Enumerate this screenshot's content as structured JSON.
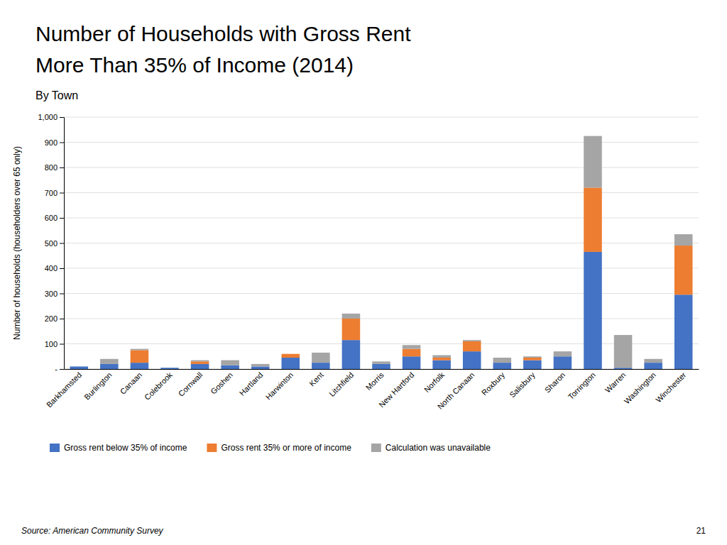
{
  "chart_data": {
    "type": "bar",
    "stacked": true,
    "title": [
      "Number of Households with Gross Rent",
      "More Than 35% of Income (2014)"
    ],
    "subtitle": "By Town",
    "ylabel": "Number of households (householders over 65 only)",
    "annotations": [
      "Source: American Community Survey",
      "21"
    ],
    "categories": [
      "Barkhamsted",
      "Burlington",
      "Canaan",
      "Colebrook",
      "Cornwall",
      "Goshen",
      "Hartland",
      "Harwinton",
      "Kent",
      "Litchfield",
      "Morris",
      "New Hartford",
      "Norfolk",
      "North Canaan",
      "Roxbury",
      "Salisbury",
      "Sharon",
      "Torrington",
      "Warren",
      "Washington",
      "Winchester"
    ],
    "series": [
      {
        "name": "Gross rent below 35% of income",
        "color": "#4472C4",
        "values": [
          10,
          20,
          25,
          5,
          20,
          15,
          10,
          45,
          25,
          115,
          20,
          50,
          35,
          70,
          25,
          35,
          50,
          465,
          5,
          25,
          295
        ]
      },
      {
        "name": "Gross rent 35% or more of income",
        "color": "#ED7D31",
        "values": [
          0,
          0,
          50,
          0,
          10,
          0,
          0,
          15,
          0,
          85,
          0,
          30,
          10,
          40,
          0,
          10,
          0,
          255,
          0,
          0,
          195
        ]
      },
      {
        "name": "Calculation was unavailable",
        "color": "#A5A5A5",
        "values": [
          0,
          20,
          5,
          0,
          5,
          20,
          10,
          0,
          40,
          20,
          10,
          15,
          10,
          5,
          20,
          5,
          20,
          205,
          130,
          15,
          45
        ]
      }
    ],
    "ylim": [
      0,
      1000
    ],
    "yticks": [
      {
        "value": 0,
        "label": "-"
      },
      100,
      200,
      300,
      400,
      500,
      600,
      700,
      800,
      900,
      {
        "value": 1000,
        "label": "1,000"
      }
    ],
    "grid": true,
    "legend": "bottom"
  }
}
